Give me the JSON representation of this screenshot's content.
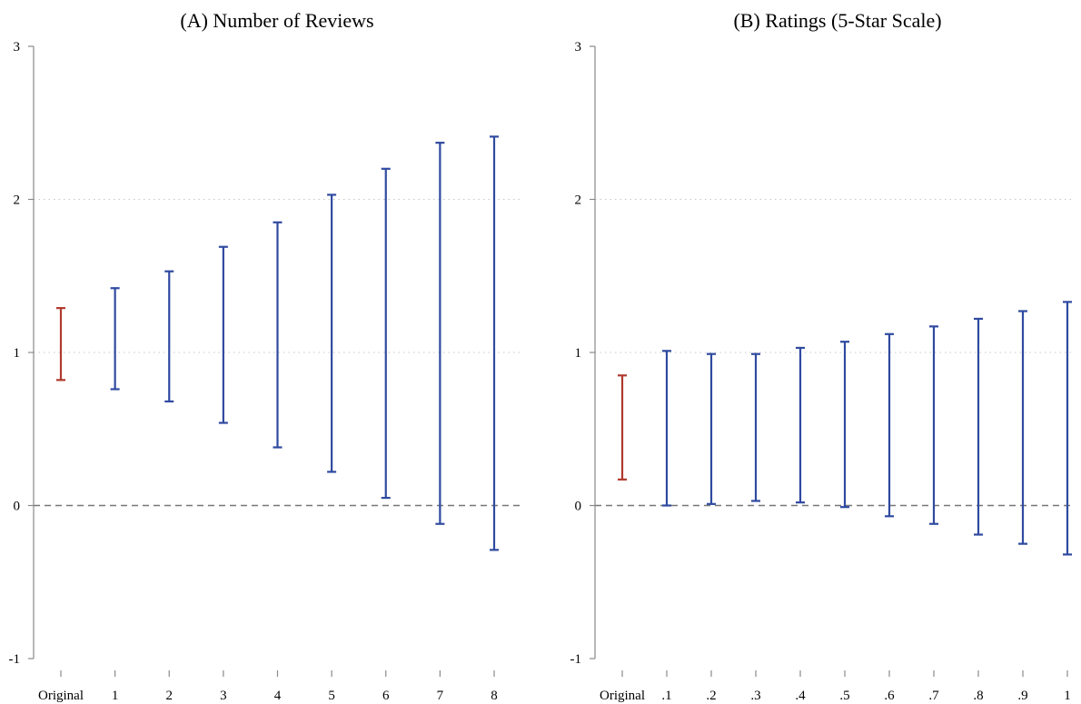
{
  "chart_data": [
    {
      "type": "errorbar",
      "title": "(A) Number of Reviews",
      "xlabel": "",
      "ylabel": "",
      "ylim": [
        -1,
        3
      ],
      "yticks": [
        "-1",
        "0",
        "1",
        "2",
        "3"
      ],
      "grid_y": [
        1,
        2
      ],
      "reference_line": 0,
      "categories": [
        "Original",
        "1",
        "2",
        "3",
        "4",
        "5",
        "6",
        "7",
        "8"
      ],
      "lower": [
        0.82,
        0.76,
        0.68,
        0.54,
        0.38,
        0.22,
        0.05,
        -0.12,
        -0.29
      ],
      "upper": [
        1.29,
        1.42,
        1.53,
        1.69,
        1.85,
        2.03,
        2.2,
        2.37,
        2.41
      ],
      "colors": [
        "#b03a2e",
        "#2f4aa0",
        "#2f4aa0",
        "#2f4aa0",
        "#2f4aa0",
        "#2f4aa0",
        "#2f4aa0",
        "#2f4aa0",
        "#2f4aa0"
      ]
    },
    {
      "type": "errorbar",
      "title": "(B) Ratings (5-Star Scale)",
      "xlabel": "",
      "ylabel": "",
      "ylim": [
        -1,
        3
      ],
      "yticks": [
        "-1",
        "0",
        "1",
        "2",
        "3"
      ],
      "grid_y": [
        1,
        2
      ],
      "reference_line": 0,
      "categories": [
        "Original",
        ".1",
        ".2",
        ".3",
        ".4",
        ".5",
        ".6",
        ".7",
        ".8",
        ".9",
        "1"
      ],
      "lower": [
        0.17,
        0.0,
        0.01,
        0.03,
        0.02,
        -0.01,
        -0.07,
        -0.12,
        -0.19,
        -0.25,
        -0.32
      ],
      "upper": [
        0.85,
        1.01,
        0.99,
        0.99,
        1.03,
        1.07,
        1.12,
        1.17,
        1.22,
        1.27,
        1.33
      ],
      "colors": [
        "#b03a2e",
        "#2f4aa0",
        "#2f4aa0",
        "#2f4aa0",
        "#2f4aa0",
        "#2f4aa0",
        "#2f4aa0",
        "#2f4aa0",
        "#2f4aa0",
        "#2f4aa0",
        "#2f4aa0"
      ]
    }
  ]
}
